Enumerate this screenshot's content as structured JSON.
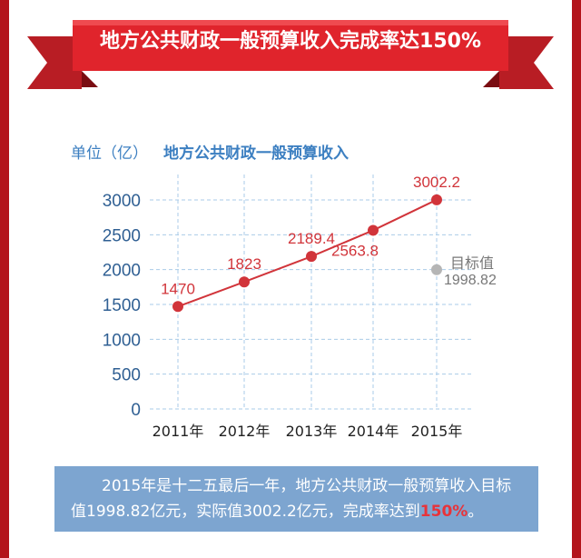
{
  "banner": {
    "title": "地方公共财政一般预算收入完成率达150%"
  },
  "colors": {
    "line": "#d1343a",
    "target": "#b5b5b5",
    "axis_text": "#2f5f93",
    "title_text": "#3c7fc1",
    "grid": "#a9cbe8",
    "bar": "#b3141b",
    "caption_bg": "#7da5d0"
  },
  "chart_data": {
    "type": "line",
    "title": "地方公共财政一般预算收入",
    "unit_label": "单位（亿）",
    "categories": [
      "2011年",
      "2012年",
      "2013年",
      "2014年",
      "2015年"
    ],
    "series": [
      {
        "values": [
          1470,
          1823,
          2189.4,
          2563.8,
          3002.2
        ],
        "labels": [
          "1470",
          "1823",
          "2189.4",
          "2563.8",
          "3002.2"
        ]
      }
    ],
    "ylim": [
      0,
      3000
    ],
    "yticks": [
      0,
      500,
      1000,
      1500,
      2000,
      2500,
      3000
    ],
    "grid": true,
    "target": {
      "label": "目标值",
      "value": 1998.82,
      "value_label": "1998.82",
      "category": "2015年"
    }
  },
  "caption": {
    "text_main": "2015年是十二五最后一年，地方公共财政一般预算收入目标值1998.82亿元，实际值3002.2亿元，完成率达到",
    "highlight": "150%",
    "tail": "。"
  }
}
